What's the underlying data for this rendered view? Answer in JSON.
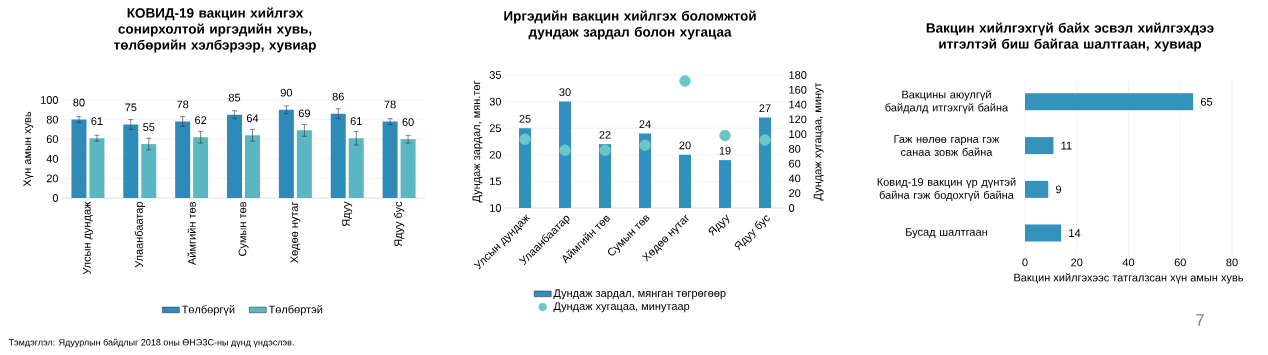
{
  "chart_data": [
    {
      "type": "bar",
      "title": "КОВИД-19 вакцин хийлгэх сонирхолтой иргэдийн хувь, төлбөрийн хэлбэрээр, хувиар",
      "ylabel": "Хүн амын хувь",
      "categories": [
        "Улсын дундаж",
        "Улаанбаатар",
        "Аймгийн төв",
        "Сумын төв",
        "Хөдөө нутаг",
        "Ядуу",
        "Ядуу бус"
      ],
      "series": [
        {
          "name": "Төлбөргүй",
          "color": "#2e8bb9",
          "values": [
            80,
            75,
            78,
            85,
            90,
            86,
            78
          ],
          "errors": [
            3,
            5,
            5,
            4,
            4,
            5,
            3
          ]
        },
        {
          "name": "Төлбөртэй",
          "color": "#5ab7c1",
          "values": [
            61,
            55,
            62,
            64,
            69,
            61,
            60
          ],
          "errors": [
            3,
            6,
            6,
            6,
            6,
            7,
            4
          ]
        }
      ],
      "ylim": [
        0,
        100
      ],
      "yticks": [
        0,
        20,
        40,
        60,
        80,
        100
      ],
      "grid": "y",
      "legend": "bottom",
      "data_labels": true,
      "annotations": [
        "Тэмдэглэл: Ядуурлын байдлыг 2018 оны ӨНЭЗС-ны дүнд үндэслэв."
      ]
    },
    {
      "type": "bar",
      "title": "Иргэдийн вакцин хийлгэх боломжтой дундаж зардал болон хугацаа",
      "ylabel": "Дундаж зардал, мян.төг",
      "y2label": "Дундаж хугацаа, минут",
      "categories": [
        "Улсын дундаж",
        "Улаанбаатар",
        "Аймгийн төв",
        "Сумын төв",
        "Хөдөө нутаг",
        "Ядуу",
        "Ядуу бус"
      ],
      "series": [
        {
          "name": "Дундаж зардал, мянган төгрөгөөр",
          "color": "#3190bd",
          "values": [
            25,
            30,
            22,
            24,
            20,
            19,
            27
          ],
          "value_labels": [
            "25",
            "30",
            "22",
            "24",
            "20",
            "19",
            "27"
          ]
        },
        {
          "name": "Дундаж хугацаа, минутаар",
          "type": "scatter",
          "axis": "y2",
          "color": "#6cc5c6",
          "values": [
            93,
            78,
            78,
            85,
            172,
            98,
            92
          ]
        }
      ],
      "ylim": [
        10,
        35
      ],
      "yticks": [
        10,
        15,
        20,
        25,
        30,
        35
      ],
      "y2lim": [
        0,
        180
      ],
      "y2ticks": [
        0,
        20,
        40,
        60,
        80,
        100,
        120,
        140,
        160,
        180
      ],
      "grid": "y",
      "legend": "bottom"
    },
    {
      "type": "bar",
      "orientation": "horizontal",
      "title": "Вакцин хийлгэхгүй байх эсвэл хийлгэхдээ итгэлтэй биш байгаа шалтгаан, хувиар",
      "xlabel": "Вакцин хийлгэхээс татгалзсан хүн амын хувь",
      "categories": [
        "Вакцины аюулгүй байдалд итгэхгүй байна",
        "Гаж нөлөө гарна гэж санаа зовж байна",
        "Ковид-19 вакцин үр дүнтэй байна гэж бодохгүй байна",
        "Бусад шалтгаан"
      ],
      "values": [
        65,
        11,
        9,
        14
      ],
      "color": "#3592bd",
      "xlim": [
        0,
        80
      ],
      "xticks": [
        0,
        20,
        40,
        60,
        80
      ],
      "grid": "x",
      "data_labels": true,
      "annotations": [
        "7"
      ]
    }
  ]
}
